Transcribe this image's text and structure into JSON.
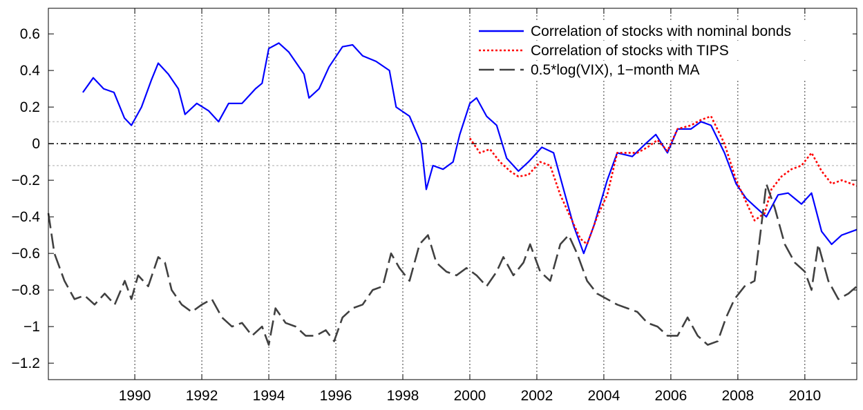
{
  "chart_data": {
    "type": "line",
    "xlim": [
      1987.42,
      2011.55
    ],
    "ylim": [
      -1.29,
      0.74
    ],
    "xticks": [
      1990,
      1992,
      1994,
      1996,
      1998,
      2000,
      2002,
      2004,
      2006,
      2008,
      2010
    ],
    "yticks": [
      {
        "value": -1.2,
        "label": "−1.2"
      },
      {
        "value": -1,
        "label": "−1"
      },
      {
        "value": -0.8,
        "label": "−0.8"
      },
      {
        "value": -0.6,
        "label": "−0.6"
      },
      {
        "value": -0.4,
        "label": "−0.4"
      },
      {
        "value": -0.2,
        "label": "−0.2"
      },
      0,
      0.2,
      0.4,
      0.6
    ],
    "xgrid": true,
    "legend": "upper right",
    "hlines": [
      {
        "value": 0.12,
        "color": "#c8c8c8",
        "style": "dotted"
      },
      {
        "value": -0.12,
        "color": "#c8c8c8",
        "style": "dotted"
      },
      {
        "value": 0,
        "color": "#000000",
        "style": "dashdot"
      }
    ],
    "series": [
      {
        "name": "Correlation of stocks with nominal bonds",
        "color": "#0000ff",
        "style": "solid",
        "x": [
          1988.45,
          1988.76,
          1989.07,
          1989.38,
          1989.69,
          1989.9,
          1990.2,
          1990.5,
          1990.7,
          1991.0,
          1991.3,
          1991.5,
          1991.85,
          1992.2,
          1992.5,
          1992.8,
          1993.2,
          1993.6,
          1993.8,
          1994.0,
          1994.3,
          1994.6,
          1995.05,
          1995.2,
          1995.5,
          1995.8,
          1996.2,
          1996.5,
          1996.8,
          1997.2,
          1997.6,
          1997.8,
          1998.2,
          1998.55,
          1998.7,
          1998.9,
          1999.2,
          1999.5,
          1999.7,
          2000.0,
          2000.2,
          2000.5,
          2000.8,
          2001.1,
          2001.45,
          2001.75,
          2002.15,
          2002.5,
          2002.8,
          2003.1,
          2003.4,
          2003.7,
          2004.1,
          2004.4,
          2004.85,
          2005.25,
          2005.55,
          2005.9,
          2006.2,
          2006.6,
          2006.9,
          2007.2,
          2007.6,
          2007.95,
          2008.25,
          2008.55,
          2008.85,
          2009.2,
          2009.5,
          2009.9,
          2010.2,
          2010.5,
          2010.8,
          2011.1,
          2011.55
        ],
        "values": [
          0.28,
          0.36,
          0.3,
          0.28,
          0.14,
          0.1,
          0.2,
          0.35,
          0.44,
          0.38,
          0.3,
          0.16,
          0.22,
          0.18,
          0.12,
          0.22,
          0.22,
          0.3,
          0.33,
          0.52,
          0.55,
          0.5,
          0.38,
          0.25,
          0.3,
          0.42,
          0.53,
          0.54,
          0.48,
          0.45,
          0.4,
          0.2,
          0.15,
          0,
          -0.25,
          -0.12,
          -0.14,
          -0.1,
          0.05,
          0.22,
          0.25,
          0.15,
          0.1,
          -0.08,
          -0.15,
          -0.1,
          -0.02,
          -0.05,
          -0.25,
          -0.45,
          -0.6,
          -0.45,
          -0.2,
          -0.05,
          -0.07,
          0,
          0.05,
          -0.05,
          0.08,
          0.08,
          0.12,
          0.1,
          -0.05,
          -0.22,
          -0.3,
          -0.35,
          -0.4,
          -0.28,
          -0.27,
          -0.33,
          -0.27,
          -0.48,
          -0.55,
          -0.5,
          -0.47
        ]
      },
      {
        "name": "Correlation of stocks with TIPS",
        "color": "#ff0000",
        "style": "dotted",
        "x": [
          2000.0,
          2000.3,
          2000.6,
          2000.9,
          2001.2,
          2001.45,
          2001.75,
          2002.1,
          2002.4,
          2002.7,
          2003.0,
          2003.3,
          2003.5,
          2003.8,
          2004.1,
          2004.4,
          2004.7,
          2005.0,
          2005.3,
          2005.6,
          2005.9,
          2006.2,
          2006.6,
          2006.9,
          2007.2,
          2007.6,
          2007.95,
          2008.25,
          2008.5,
          2008.8,
          2009.0,
          2009.3,
          2009.6,
          2009.9,
          2010.2,
          2010.5,
          2010.8,
          2011.1,
          2011.55
        ],
        "values": [
          0.03,
          -0.05,
          -0.03,
          -0.1,
          -0.15,
          -0.18,
          -0.17,
          -0.1,
          -0.12,
          -0.28,
          -0.4,
          -0.52,
          -0.55,
          -0.4,
          -0.28,
          -0.05,
          -0.05,
          -0.05,
          -0.02,
          0.02,
          -0.04,
          0.08,
          0.1,
          0.13,
          0.15,
          0,
          -0.2,
          -0.32,
          -0.42,
          -0.38,
          -0.25,
          -0.18,
          -0.14,
          -0.12,
          -0.05,
          -0.15,
          -0.22,
          -0.2,
          -0.23
        ]
      },
      {
        "name": "0.5*log(VIX), 1−month MA",
        "color": "#404040",
        "style": "dashed",
        "x": [
          1987.42,
          1987.6,
          1987.9,
          1988.2,
          1988.5,
          1988.8,
          1989.1,
          1989.4,
          1989.7,
          1989.9,
          1990.1,
          1990.4,
          1990.7,
          1990.9,
          1991.1,
          1991.4,
          1991.7,
          1992.0,
          1992.3,
          1992.6,
          1992.9,
          1993.2,
          1993.5,
          1993.8,
          1994.0,
          1994.2,
          1994.5,
          1994.8,
          1995.1,
          1995.4,
          1995.7,
          1995.95,
          1996.2,
          1996.5,
          1996.8,
          1997.1,
          1997.4,
          1997.65,
          1997.9,
          1998.2,
          1998.5,
          1998.75,
          1999.0,
          1999.3,
          1999.6,
          1999.9,
          2000.2,
          2000.5,
          2000.8,
          2001.0,
          2001.3,
          2001.6,
          2001.8,
          2002.1,
          2002.4,
          2002.7,
          2002.95,
          2003.2,
          2003.5,
          2003.8,
          2004.1,
          2004.4,
          2004.7,
          2005.0,
          2005.3,
          2005.6,
          2005.9,
          2006.2,
          2006.5,
          2006.8,
          2007.1,
          2007.4,
          2007.65,
          2007.9,
          2008.2,
          2008.5,
          2008.7,
          2008.85,
          2009.1,
          2009.4,
          2009.7,
          2010.0,
          2010.2,
          2010.4,
          2010.7,
          2011.0,
          2011.3,
          2011.55
        ],
        "values": [
          -0.38,
          -0.6,
          -0.75,
          -0.85,
          -0.83,
          -0.88,
          -0.82,
          -0.88,
          -0.75,
          -0.85,
          -0.72,
          -0.78,
          -0.62,
          -0.65,
          -0.8,
          -0.88,
          -0.92,
          -0.88,
          -0.85,
          -0.95,
          -1.0,
          -0.98,
          -1.05,
          -1.0,
          -1.1,
          -0.9,
          -0.98,
          -1.0,
          -1.05,
          -1.05,
          -1.02,
          -1.08,
          -0.95,
          -0.9,
          -0.88,
          -0.8,
          -0.78,
          -0.6,
          -0.68,
          -0.75,
          -0.55,
          -0.5,
          -0.65,
          -0.7,
          -0.72,
          -0.68,
          -0.72,
          -0.78,
          -0.7,
          -0.62,
          -0.72,
          -0.65,
          -0.55,
          -0.7,
          -0.75,
          -0.55,
          -0.5,
          -0.6,
          -0.75,
          -0.82,
          -0.85,
          -0.88,
          -0.9,
          -0.92,
          -0.98,
          -1.0,
          -1.05,
          -1.05,
          -0.95,
          -1.05,
          -1.1,
          -1.08,
          -0.95,
          -0.85,
          -0.78,
          -0.75,
          -0.45,
          -0.22,
          -0.35,
          -0.55,
          -0.65,
          -0.7,
          -0.8,
          -0.55,
          -0.75,
          -0.85,
          -0.82,
          -0.78
        ]
      }
    ]
  }
}
